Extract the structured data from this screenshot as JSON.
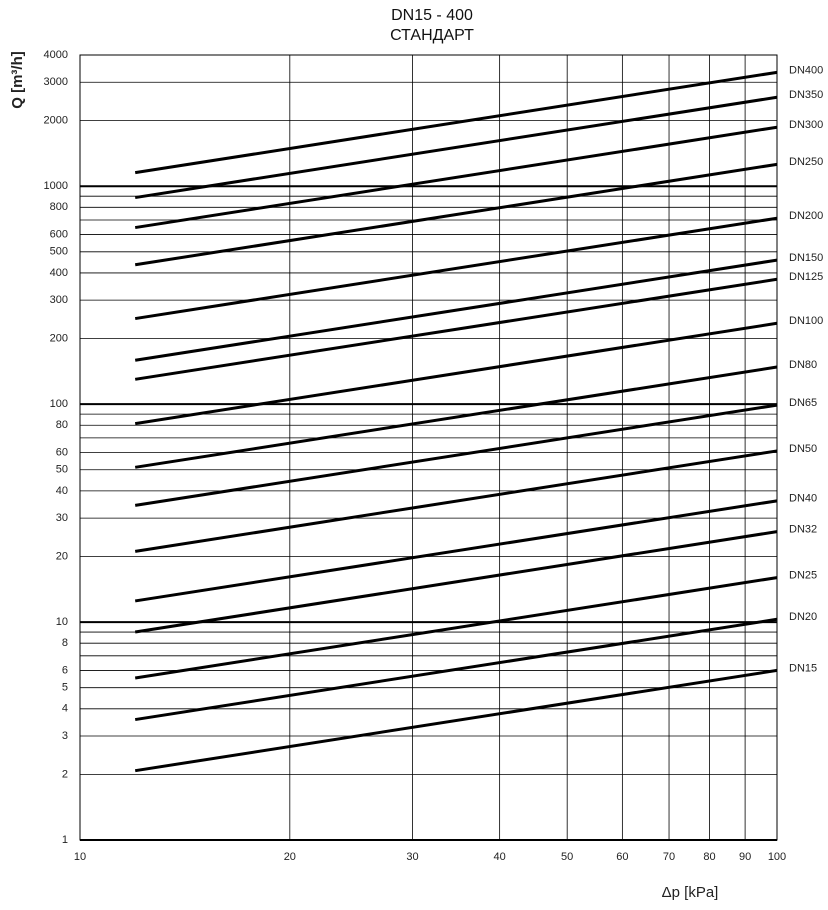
{
  "chart_data": {
    "type": "line",
    "title": "DN15 - 400",
    "subtitle": "СТАНДАРТ",
    "ylabel": "Q [m³/h]",
    "xlabel": "Δp [kPa]",
    "log_x": true,
    "log_y": true,
    "grid": true,
    "xlim": [
      10,
      100
    ],
    "ylim": [
      1,
      4000
    ],
    "xticks": [
      10,
      20,
      30,
      40,
      50,
      60,
      70,
      80,
      90,
      100
    ],
    "yticks": [
      1,
      2,
      3,
      4,
      5,
      6,
      8,
      10,
      20,
      30,
      40,
      50,
      60,
      80,
      100,
      200,
      300,
      400,
      500,
      600,
      800,
      1000,
      2000,
      3000,
      4000
    ],
    "y_minor_gridlines": [
      7,
      9,
      70,
      90,
      700,
      900
    ],
    "x": [
      12,
      100
    ],
    "series": [
      {
        "name": "DN400",
        "color": "#000000",
        "values": [
          1154,
          3330
        ]
      },
      {
        "name": "DN350",
        "color": "#000000",
        "values": [
          887,
          2560
        ]
      },
      {
        "name": "DN300",
        "color": "#000000",
        "values": [
          646,
          1865
        ]
      },
      {
        "name": "DN250",
        "color": "#000000",
        "values": [
          436,
          1260
        ]
      },
      {
        "name": "DN200",
        "color": "#000000",
        "values": [
          247,
          713
        ]
      },
      {
        "name": "DN150",
        "color": "#000000",
        "values": [
          159,
          458
        ]
      },
      {
        "name": "DN125",
        "color": "#000000",
        "values": [
          130,
          374
        ]
      },
      {
        "name": "DN100",
        "color": "#000000",
        "values": [
          81.4,
          235
        ]
      },
      {
        "name": "DN80",
        "color": "#000000",
        "values": [
          51.3,
          148
        ]
      },
      {
        "name": "DN65",
        "color": "#000000",
        "values": [
          34.3,
          99
        ]
      },
      {
        "name": "DN50",
        "color": "#000000",
        "values": [
          21.1,
          61
        ]
      },
      {
        "name": "DN40",
        "color": "#000000",
        "values": [
          12.5,
          36
        ]
      },
      {
        "name": "DN32",
        "color": "#000000",
        "values": [
          9.0,
          26
        ]
      },
      {
        "name": "DN25",
        "color": "#000000",
        "values": [
          5.54,
          16
        ]
      },
      {
        "name": "DN20",
        "color": "#000000",
        "values": [
          3.57,
          10.3
        ]
      },
      {
        "name": "DN15",
        "color": "#000000",
        "values": [
          2.08,
          6.0
        ]
      }
    ]
  }
}
